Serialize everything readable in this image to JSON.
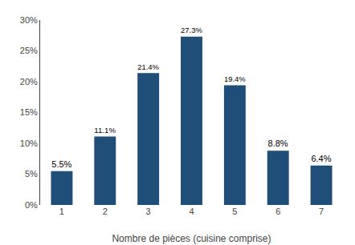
{
  "chart_data": {
    "type": "bar",
    "xlabel": "Nombre de pièces (cuisine comprise)",
    "categories": [
      "1",
      "2",
      "3",
      "4",
      "5",
      "6",
      "7"
    ],
    "values": [
      5.5,
      11.1,
      21.4,
      27.3,
      19.4,
      8.8,
      6.4
    ],
    "value_labels": [
      "5.5%",
      "11.1%",
      "21.4%",
      "27.3%",
      "19.4%",
      "8.8%",
      "6.4%"
    ],
    "data_labels": true,
    "color": "#1F4E79",
    "ylim": [
      0,
      30
    ],
    "yticks": [
      {
        "value": 0,
        "label": "0%"
      },
      {
        "value": 5,
        "label": "5%"
      },
      {
        "value": 10,
        "label": "10%"
      },
      {
        "value": 15,
        "label": "15%"
      },
      {
        "value": 20,
        "label": "20%"
      },
      {
        "value": 25,
        "label": "25%"
      },
      {
        "value": 30,
        "label": "30%"
      }
    ],
    "grid": false
  }
}
